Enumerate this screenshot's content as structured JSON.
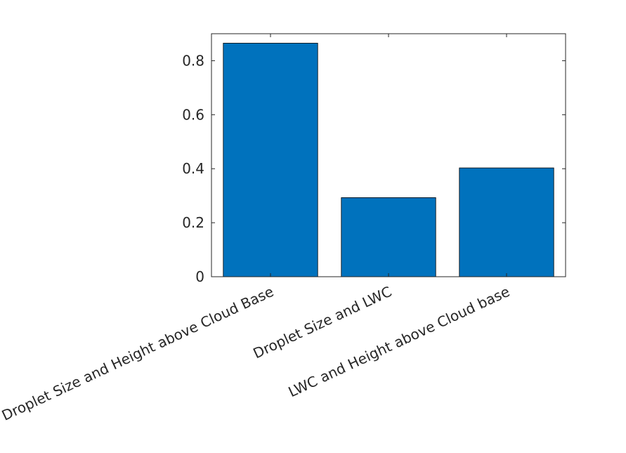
{
  "chart_data": {
    "type": "bar",
    "categories": [
      "Droplet Size and Height above Cloud Base",
      "Droplet Size and LWC",
      "LWC and Height above Cloud base"
    ],
    "values": [
      0.865,
      0.293,
      0.403
    ],
    "ylim": [
      0,
      0.9
    ],
    "yticks": [
      0,
      0.2,
      0.4,
      0.6,
      0.8
    ],
    "ytick_labels": [
      "0",
      "0.2",
      "0.4",
      "0.6",
      "0.8"
    ],
    "title": "",
    "xlabel": "",
    "ylabel": "",
    "bar_color": "#0072BD",
    "grid": false,
    "legend": "none"
  }
}
